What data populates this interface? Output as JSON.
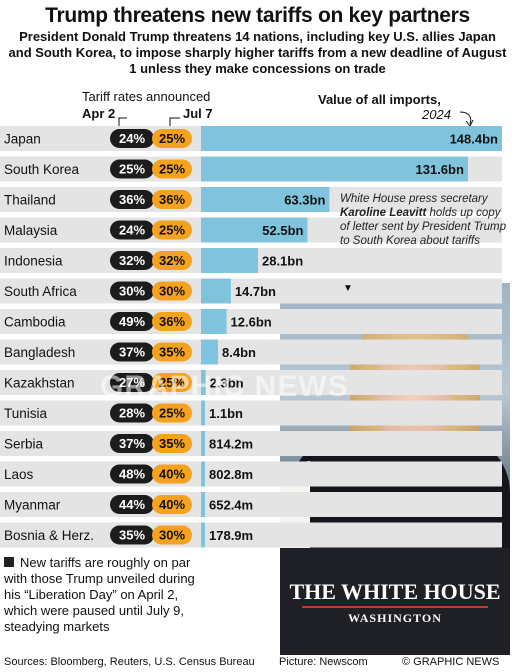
{
  "title": "Trump threatens new tariffs on key partners",
  "subtitle": "President Donald Trump threatens 14 nations, including key U.S. allies Japan and South Korea, to impose sharply higher tariffs from a new deadline of August 1 unless they make concessions on trade",
  "headers": {
    "tariff_rates": "Tariff rates announced",
    "apr": "Apr 2",
    "jul": "Jul 7",
    "imports": "Value of all imports,",
    "imports_year": "2024"
  },
  "caption": {
    "pre": "White House press secretary ",
    "name": "Karoline Leavitt",
    "post": " holds up copy of letter sent by President Trump to South Korea about tariffs"
  },
  "photo_text": {
    "line1": "THE WHITE HOUSE",
    "line2": "WASHINGTON"
  },
  "watermark": "GRAPHIC NEWS",
  "note": "New tariffs are roughly on par with those Trump unveiled during his “Liberation Day” on April 2, which were paused until July 9, steadying markets",
  "footer": {
    "sources": "Sources: Bloomberg, Reuters, U.S. Census Bureau",
    "picture": "Picture: Newscom",
    "credit": "© GRAPHIC NEWS"
  },
  "colors": {
    "bar": "#7fc4dc",
    "row_alt": "#e4e4e4",
    "apr_pill": "#1c1c1c",
    "jul_pill": "#f5a31f"
  },
  "chart_data": {
    "type": "bar",
    "categories": [
      "Japan",
      "South Korea",
      "Thailand",
      "Malaysia",
      "Indonesia",
      "South Africa",
      "Cambodia",
      "Bangladesh",
      "Kazakhstan",
      "Tunisia",
      "Serbia",
      "Laos",
      "Myanmar",
      "Bosnia & Herz."
    ],
    "tariff_apr2": [
      "24%",
      "25%",
      "36%",
      "24%",
      "32%",
      "30%",
      "49%",
      "37%",
      "27%",
      "28%",
      "37%",
      "48%",
      "44%",
      "35%"
    ],
    "tariff_jul7": [
      "25%",
      "25%",
      "36%",
      "25%",
      "32%",
      "30%",
      "36%",
      "35%",
      "25%",
      "25%",
      "35%",
      "40%",
      "40%",
      "30%"
    ],
    "imports_bn": [
      148.4,
      131.6,
      63.3,
      52.5,
      28.1,
      14.7,
      12.6,
      8.4,
      2.3,
      1.1,
      0.8142,
      0.8028,
      0.6524,
      0.1789
    ],
    "import_labels": [
      "148.4bn",
      "131.6bn",
      "63.3bn",
      "52.5bn",
      "28.1bn",
      "14.7bn",
      "12.6bn",
      "8.4bn",
      "2.3bn",
      "1.1bn",
      "814.2m",
      "802.8m",
      "652.4m",
      "178.9m"
    ],
    "xlim": [
      0,
      148.4
    ]
  }
}
